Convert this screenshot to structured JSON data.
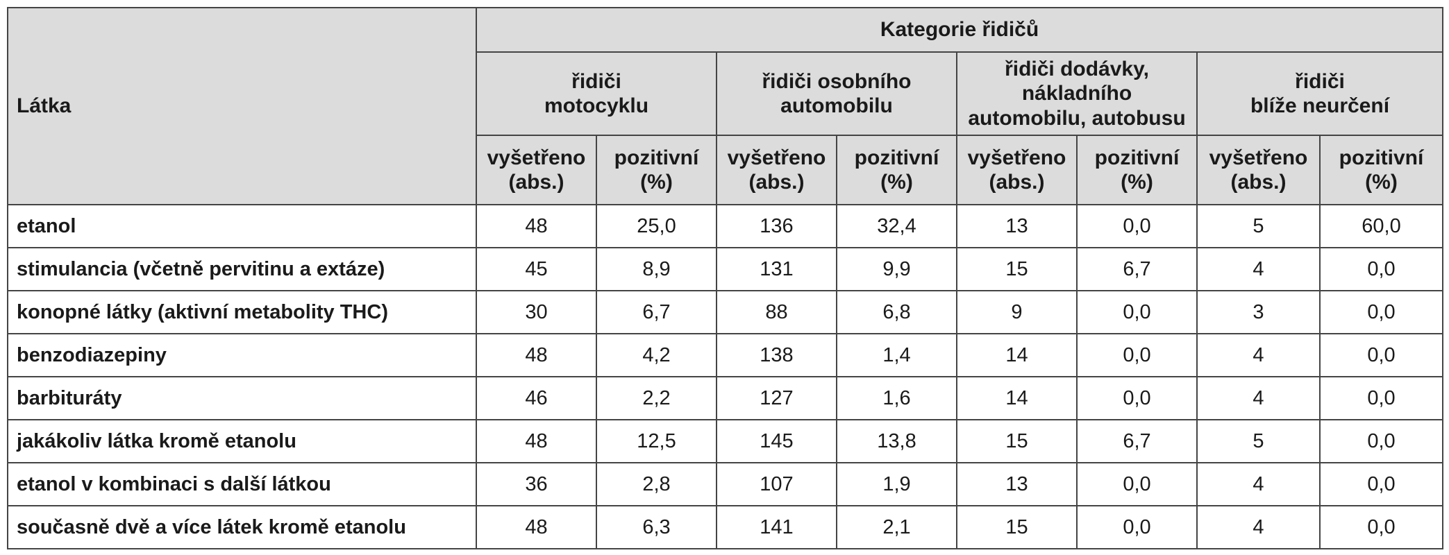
{
  "header": {
    "latka": "Látka",
    "kategorie": "Kategorie řidičů",
    "groups": [
      {
        "line1": "řidiči",
        "line2": "motocyklu",
        "line3": ""
      },
      {
        "line1": "řidiči osobního",
        "line2": "automobilu",
        "line3": ""
      },
      {
        "line1": "řidiči dodávky,",
        "line2": "nákladního",
        "line3": "automobilu, autobusu"
      },
      {
        "line1": "řidiči",
        "line2": "blíže neurčení",
        "line3": ""
      }
    ],
    "sub": {
      "vysetreno1": "vyšetřeno",
      "vysetreno2": "(abs.)",
      "pozitivni1": "pozitivní",
      "pozitivni2": "(%)"
    }
  },
  "rows": [
    {
      "name": "etanol",
      "v": [
        "48",
        "25,0",
        "136",
        "32,4",
        "13",
        "0,0",
        "5",
        "60,0"
      ]
    },
    {
      "name": "stimulancia (včetně pervitinu a extáze)",
      "v": [
        "45",
        "8,9",
        "131",
        "9,9",
        "15",
        "6,7",
        "4",
        "0,0"
      ]
    },
    {
      "name": "konopné látky (aktivní metabolity THC)",
      "v": [
        "30",
        "6,7",
        "88",
        "6,8",
        "9",
        "0,0",
        "3",
        "0,0"
      ]
    },
    {
      "name": "benzodiazepiny",
      "v": [
        "48",
        "4,2",
        "138",
        "1,4",
        "14",
        "0,0",
        "4",
        "0,0"
      ]
    },
    {
      "name": "barbituráty",
      "v": [
        "46",
        "2,2",
        "127",
        "1,6",
        "14",
        "0,0",
        "4",
        "0,0"
      ]
    },
    {
      "name": "jakákoliv látka kromě etanolu",
      "v": [
        "48",
        "12,5",
        "145",
        "13,8",
        "15",
        "6,7",
        "5",
        "0,0"
      ]
    },
    {
      "name": "etanol v kombinaci s další látkou",
      "v": [
        "36",
        "2,8",
        "107",
        "1,9",
        "13",
        "0,0",
        "4",
        "0,0"
      ]
    },
    {
      "name": "současně dvě a více látek kromě etanolu",
      "v": [
        "48",
        "6,3",
        "141",
        "2,1",
        "15",
        "0,0",
        "4",
        "0,0"
      ]
    }
  ]
}
